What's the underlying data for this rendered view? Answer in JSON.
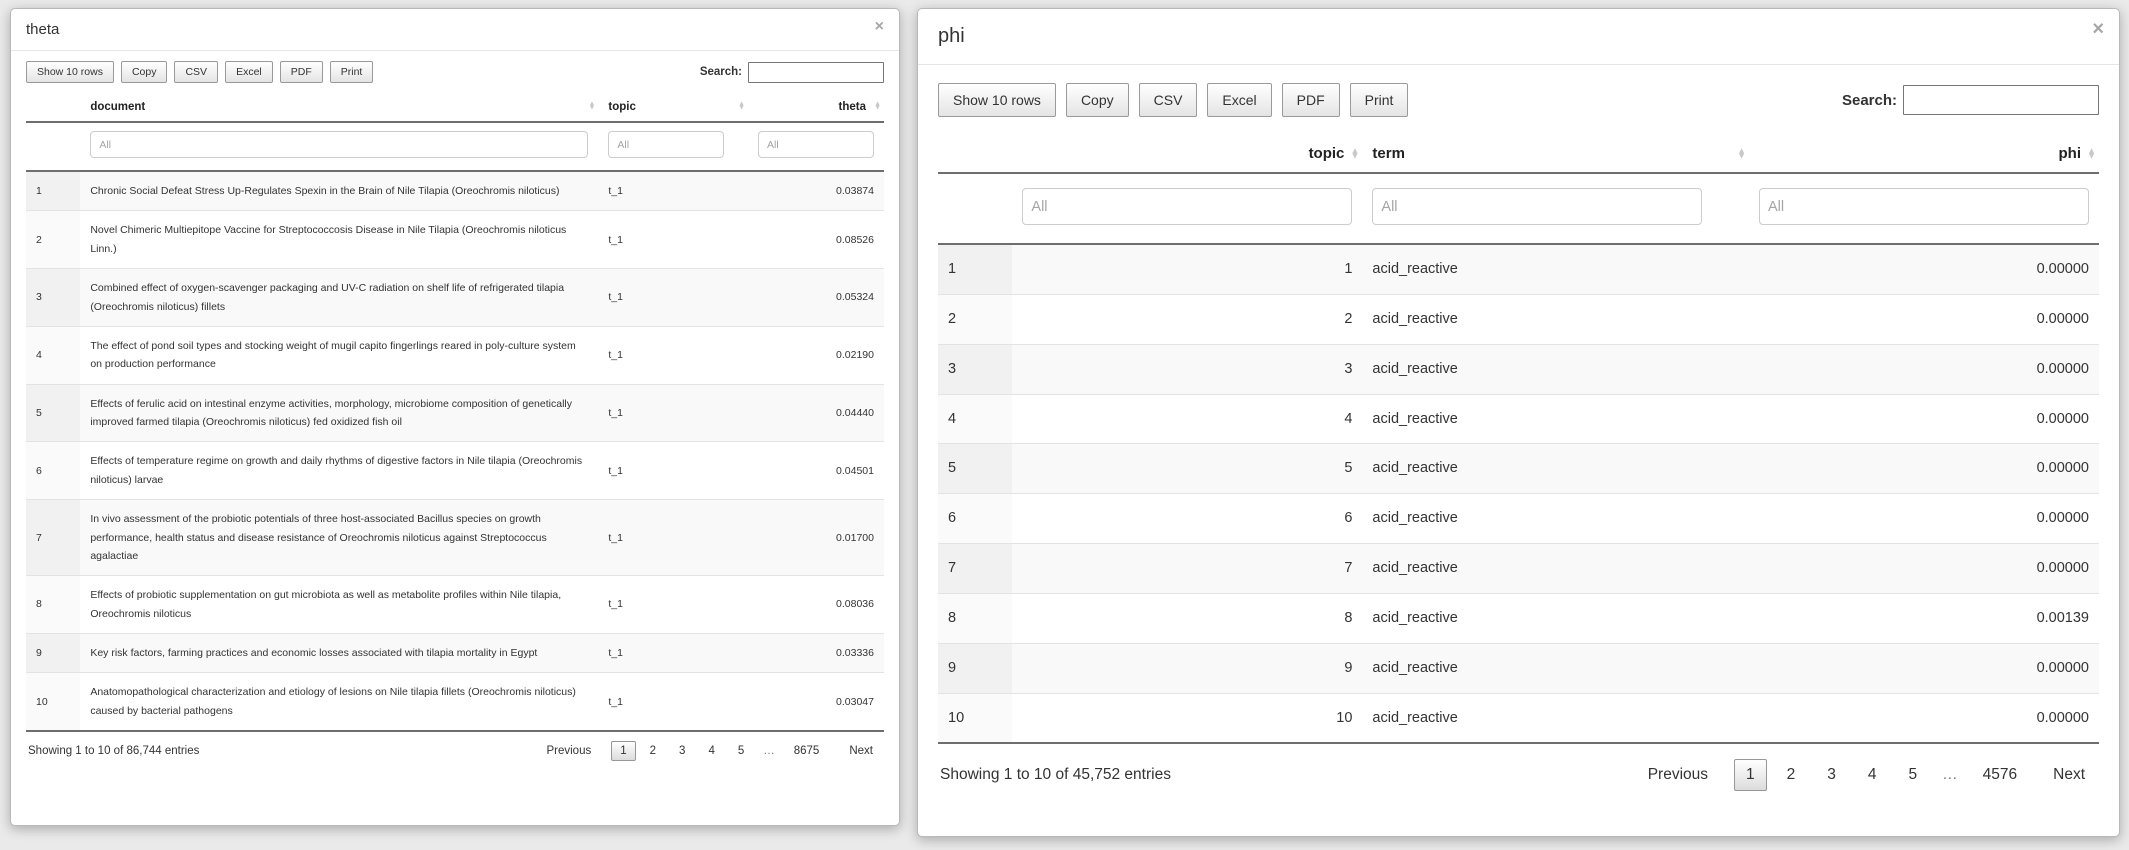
{
  "icons": {
    "close": "×",
    "sort_up": "▲",
    "sort_down": "▼"
  },
  "panels": [
    {
      "title": "theta",
      "toolbar": {
        "buttons": [
          "Show 10 rows",
          "Copy",
          "CSV",
          "Excel",
          "PDF",
          "Print"
        ],
        "search_label": "Search:",
        "search_value": ""
      },
      "table": {
        "filter_placeholder": "All",
        "columns": [
          {
            "label": "",
            "align": "left",
            "sortable": false
          },
          {
            "label": "document",
            "align": "left",
            "sortable": true
          },
          {
            "label": "topic",
            "align": "left",
            "sortable": true
          },
          {
            "label": "theta",
            "align": "right",
            "sortable": true
          }
        ],
        "rows": [
          {
            "num": "1",
            "cells": [
              "Chronic Social Defeat Stress Up-Regulates Spexin in the Brain of Nile Tilapia (Oreochromis niloticus)",
              "t_1",
              "0.03874"
            ]
          },
          {
            "num": "2",
            "cells": [
              "Novel Chimeric Multiepitope Vaccine for Streptococcosis Disease in Nile Tilapia (Oreochromis niloticus Linn.)",
              "t_1",
              "0.08526"
            ]
          },
          {
            "num": "3",
            "cells": [
              "Combined effect of oxygen-scavenger packaging and UV-C radiation on shelf life of refrigerated tilapia (Oreochromis niloticus) fillets",
              "t_1",
              "0.05324"
            ]
          },
          {
            "num": "4",
            "cells": [
              "The effect of pond soil types and stocking weight of mugil capito fingerlings reared in poly-culture system on production performance",
              "t_1",
              "0.02190"
            ]
          },
          {
            "num": "5",
            "cells": [
              "Effects of ferulic acid on intestinal enzyme activities, morphology, microbiome composition of genetically improved farmed tilapia (Oreochromis niloticus) fed oxidized fish oil",
              "t_1",
              "0.04440"
            ]
          },
          {
            "num": "6",
            "cells": [
              "Effects of temperature regime on growth and daily rhythms of digestive factors in Nile tilapia (Oreochromis niloticus) larvae",
              "t_1",
              "0.04501"
            ]
          },
          {
            "num": "7",
            "cells": [
              "In vivo assessment of the probiotic potentials of three host-associated Bacillus species on growth performance, health status and disease resistance of Oreochromis niloticus against Streptococcus agalactiae",
              "t_1",
              "0.01700"
            ]
          },
          {
            "num": "8",
            "cells": [
              "Effects of probiotic supplementation on gut microbiota as well as metabolite profiles within Nile tilapia, Oreochromis niloticus",
              "t_1",
              "0.08036"
            ]
          },
          {
            "num": "9",
            "cells": [
              "Key risk factors, farming practices and economic losses associated with tilapia mortality in Egypt",
              "t_1",
              "0.03336"
            ]
          },
          {
            "num": "10",
            "cells": [
              "Anatomopathological characterization and etiology of lesions on Nile tilapia fillets (Oreochromis niloticus) caused by bacterial pathogens",
              "t_1",
              "0.03047"
            ]
          }
        ]
      },
      "footer": {
        "info": "Showing 1 to 10 of 86,744 entries",
        "pagination": [
          {
            "label": "Previous",
            "type": "prev",
            "current": false
          },
          {
            "label": "1",
            "type": "page",
            "current": true
          },
          {
            "label": "2",
            "type": "page",
            "current": false
          },
          {
            "label": "3",
            "type": "page",
            "current": false
          },
          {
            "label": "4",
            "type": "page",
            "current": false
          },
          {
            "label": "5",
            "type": "page",
            "current": false
          },
          {
            "label": "…",
            "type": "ellipsis",
            "current": false
          },
          {
            "label": "8675",
            "type": "page",
            "current": false
          },
          {
            "label": "Next",
            "type": "next",
            "current": false
          }
        ]
      }
    },
    {
      "title": "phi",
      "toolbar": {
        "buttons": [
          "Show 10 rows",
          "Copy",
          "CSV",
          "Excel",
          "PDF",
          "Print"
        ],
        "search_label": "Search:",
        "search_value": ""
      },
      "table": {
        "filter_placeholder": "All",
        "columns": [
          {
            "label": "",
            "align": "left",
            "sortable": false
          },
          {
            "label": "topic",
            "align": "right",
            "sortable": true
          },
          {
            "label": "term",
            "align": "left",
            "sortable": true
          },
          {
            "label": "phi",
            "align": "right",
            "sortable": true
          }
        ],
        "rows": [
          {
            "num": "1",
            "cells": [
              "1",
              "acid_reactive",
              "0.00000"
            ]
          },
          {
            "num": "2",
            "cells": [
              "2",
              "acid_reactive",
              "0.00000"
            ]
          },
          {
            "num": "3",
            "cells": [
              "3",
              "acid_reactive",
              "0.00000"
            ]
          },
          {
            "num": "4",
            "cells": [
              "4",
              "acid_reactive",
              "0.00000"
            ]
          },
          {
            "num": "5",
            "cells": [
              "5",
              "acid_reactive",
              "0.00000"
            ]
          },
          {
            "num": "6",
            "cells": [
              "6",
              "acid_reactive",
              "0.00000"
            ]
          },
          {
            "num": "7",
            "cells": [
              "7",
              "acid_reactive",
              "0.00000"
            ]
          },
          {
            "num": "8",
            "cells": [
              "8",
              "acid_reactive",
              "0.00139"
            ]
          },
          {
            "num": "9",
            "cells": [
              "9",
              "acid_reactive",
              "0.00000"
            ]
          },
          {
            "num": "10",
            "cells": [
              "10",
              "acid_reactive",
              "0.00000"
            ]
          }
        ]
      },
      "footer": {
        "info": "Showing 1 to 10 of 45,752 entries",
        "pagination": [
          {
            "label": "Previous",
            "type": "prev",
            "current": false
          },
          {
            "label": "1",
            "type": "page",
            "current": true
          },
          {
            "label": "2",
            "type": "page",
            "current": false
          },
          {
            "label": "3",
            "type": "page",
            "current": false
          },
          {
            "label": "4",
            "type": "page",
            "current": false
          },
          {
            "label": "5",
            "type": "page",
            "current": false
          },
          {
            "label": "…",
            "type": "ellipsis",
            "current": false
          },
          {
            "label": "4576",
            "type": "page",
            "current": false
          },
          {
            "label": "Next",
            "type": "next",
            "current": false
          }
        ]
      }
    }
  ]
}
